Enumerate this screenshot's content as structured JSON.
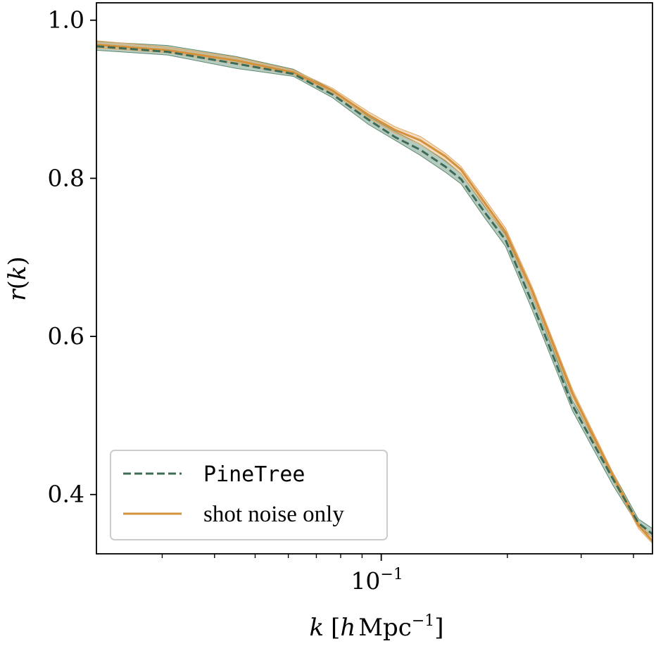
{
  "chart_data": {
    "type": "line",
    "xlabel": "k [h Mpc⁻¹]",
    "ylabel": "r(k)",
    "xscale": "log",
    "xlim": [
      0.0209,
      0.444
    ],
    "ylim": [
      0.325,
      1.022
    ],
    "yticks": [
      {
        "value": 0.4,
        "label": "0.4"
      },
      {
        "value": 0.6,
        "label": "0.6"
      },
      {
        "value": 0.8,
        "label": "0.8"
      },
      {
        "value": 1.0,
        "label": "1.0"
      }
    ],
    "xticks": [
      {
        "value": 0.1,
        "base": "10",
        "exponent": "−1"
      }
    ],
    "grid": false,
    "legend": {
      "position": "lower-left"
    },
    "series": [
      {
        "name": "PineTree",
        "style": "dashed",
        "color": "#3d6b55",
        "band_color": "#5e8b72",
        "x": [
          0.0209,
          0.0309,
          0.0451,
          0.0617,
          0.0765,
          0.0933,
          0.108,
          0.124,
          0.142,
          0.155,
          0.176,
          0.198,
          0.229,
          0.286,
          0.357,
          0.411,
          0.444
        ],
        "y": [
          0.967,
          0.96,
          0.945,
          0.932,
          0.906,
          0.874,
          0.852,
          0.836,
          0.815,
          0.799,
          0.758,
          0.722,
          0.643,
          0.513,
          0.42,
          0.364,
          0.35
        ],
        "y_lower": [
          0.962,
          0.956,
          0.939,
          0.929,
          0.902,
          0.868,
          0.848,
          0.829,
          0.808,
          0.793,
          0.751,
          0.714,
          0.634,
          0.506,
          0.412,
          0.36,
          0.346
        ],
        "y_upper": [
          0.973,
          0.968,
          0.954,
          0.938,
          0.912,
          0.878,
          0.859,
          0.843,
          0.822,
          0.806,
          0.765,
          0.729,
          0.652,
          0.519,
          0.428,
          0.369,
          0.357
        ]
      },
      {
        "name": "shot noise only",
        "style": "solid",
        "color": "#d4913b",
        "band_color": "#e0a865",
        "x": [
          0.0209,
          0.0309,
          0.0451,
          0.0617,
          0.0765,
          0.0933,
          0.108,
          0.124,
          0.142,
          0.155,
          0.176,
          0.198,
          0.229,
          0.286,
          0.357,
          0.411,
          0.444
        ],
        "y": [
          0.969,
          0.962,
          0.949,
          0.934,
          0.911,
          0.88,
          0.861,
          0.848,
          0.828,
          0.811,
          0.77,
          0.732,
          0.658,
          0.528,
          0.424,
          0.361,
          0.341
        ],
        "y_lower": [
          0.965,
          0.959,
          0.945,
          0.931,
          0.908,
          0.876,
          0.857,
          0.843,
          0.823,
          0.806,
          0.766,
          0.727,
          0.652,
          0.523,
          0.419,
          0.357,
          0.338
        ],
        "y_upper": [
          0.974,
          0.966,
          0.953,
          0.937,
          0.914,
          0.884,
          0.865,
          0.853,
          0.832,
          0.815,
          0.775,
          0.737,
          0.663,
          0.533,
          0.428,
          0.365,
          0.345
        ]
      }
    ]
  }
}
